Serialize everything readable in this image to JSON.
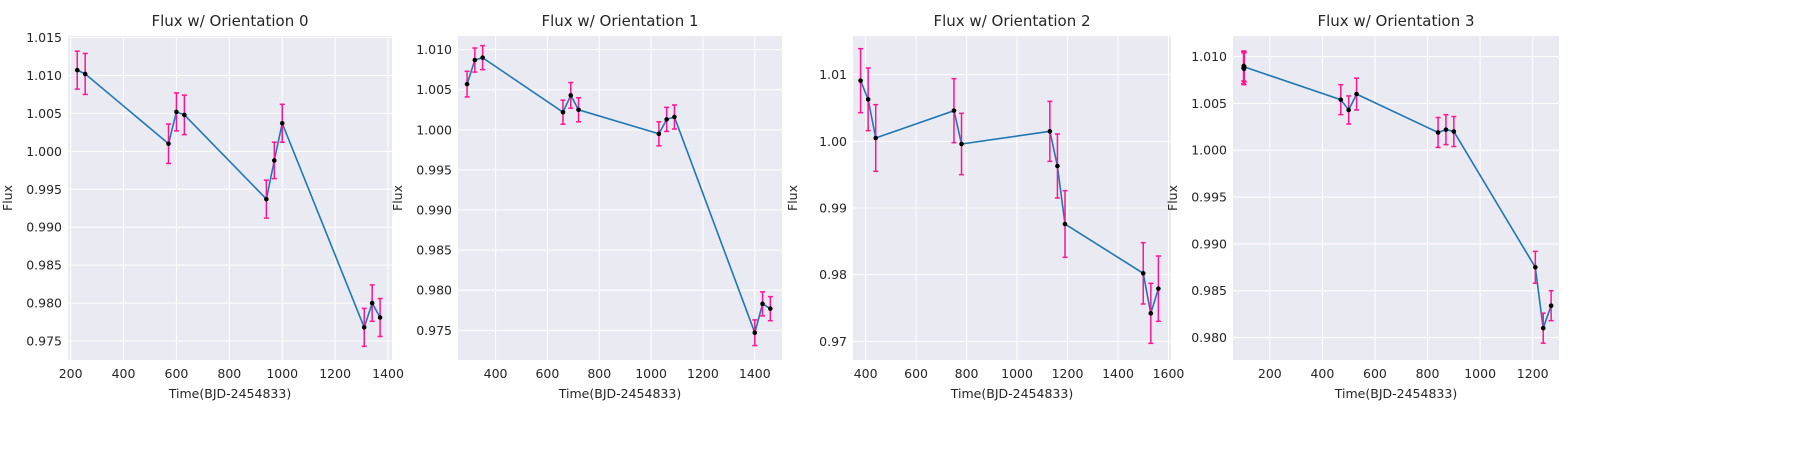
{
  "chart_data": [
    {
      "type": "line",
      "title": "Flux w/ Orientation 0",
      "xlabel": "Time(BJD-2454833)",
      "ylabel": "Flux",
      "xlim": [
        190,
        1415
      ],
      "ylim": [
        0.9725,
        1.0152
      ],
      "xticks": [
        200,
        400,
        600,
        800,
        1000,
        1200,
        1400
      ],
      "yticks": [
        0.975,
        0.98,
        0.985,
        0.99,
        0.995,
        1.0,
        1.005,
        1.01,
        1.015
      ],
      "ytick_labels": [
        "0.975",
        "0.980",
        "0.985",
        "0.990",
        "0.995",
        "1.000",
        "1.005",
        "1.010",
        "1.015"
      ],
      "grid": true,
      "x": [
        225,
        255,
        570,
        600,
        630,
        940,
        970,
        1000,
        1310,
        1340,
        1370
      ],
      "y": [
        1.0107,
        1.0102,
        1.001,
        1.0052,
        1.0048,
        0.9937,
        0.9988,
        1.0037,
        0.9768,
        0.98,
        0.9781
      ],
      "err": [
        0.0025,
        0.0027,
        0.0026,
        0.0025,
        0.0026,
        0.0025,
        0.0024,
        0.0025,
        0.0025,
        0.0024,
        0.0025
      ]
    },
    {
      "type": "line",
      "title": "Flux w/ Orientation 1",
      "xlabel": "Time(BJD-2454833)",
      "ylabel": "Flux",
      "xlim": [
        255,
        1505
      ],
      "ylim": [
        0.9713,
        1.0117
      ],
      "xticks": [
        400,
        600,
        800,
        1000,
        1200,
        1400
      ],
      "yticks": [
        0.975,
        0.98,
        0.985,
        0.99,
        0.995,
        1.0,
        1.005,
        1.01
      ],
      "ytick_labels": [
        "0.975",
        "0.980",
        "0.985",
        "0.990",
        "0.995",
        "1.000",
        "1.005",
        "1.010"
      ],
      "grid": true,
      "x": [
        290,
        320,
        350,
        660,
        690,
        720,
        1030,
        1060,
        1090,
        1400,
        1430,
        1460
      ],
      "y": [
        1.0057,
        1.0087,
        1.009,
        1.0022,
        1.0043,
        1.0025,
        0.9995,
        1.0013,
        1.0016,
        0.9747,
        0.9783,
        0.9777
      ],
      "err": [
        0.0016,
        0.0015,
        0.0015,
        0.0015,
        0.0016,
        0.0015,
        0.0015,
        0.0015,
        0.0015,
        0.0016,
        0.0015,
        0.0015
      ]
    },
    {
      "type": "line",
      "title": "Flux w/ Orientation 2",
      "xlabel": "Time(BJD-2454833)",
      "ylabel": "Flux",
      "xlim": [
        350,
        1610
      ],
      "ylim": [
        0.9672,
        1.0158
      ],
      "xticks": [
        400,
        600,
        800,
        1000,
        1200,
        1400,
        1600
      ],
      "yticks": [
        0.97,
        0.98,
        0.99,
        1.0,
        1.01
      ],
      "ytick_labels": [
        "0.97",
        "0.98",
        "0.99",
        "1.00",
        "1.01"
      ],
      "grid": true,
      "x": [
        380,
        410,
        440,
        750,
        780,
        1130,
        1160,
        1190,
        1500,
        1530,
        1560
      ],
      "y": [
        1.0091,
        1.0063,
        1.0005,
        1.0046,
        0.9996,
        1.0015,
        0.9963,
        0.9876,
        0.9802,
        0.9742,
        0.9779
      ],
      "err": [
        0.0048,
        0.0047,
        0.005,
        0.0048,
        0.0046,
        0.0045,
        0.0048,
        0.005,
        0.0046,
        0.0045,
        0.0049
      ]
    },
    {
      "type": "line",
      "title": "Flux w/ Orientation 3",
      "xlabel": "Time(BJD-2454833)",
      "ylabel": "Flux",
      "xlim": [
        60,
        1300
      ],
      "ylim": [
        0.9776,
        1.0122
      ],
      "xticks": [
        200,
        400,
        600,
        800,
        1000,
        1200
      ],
      "yticks": [
        0.98,
        0.985,
        0.99,
        0.995,
        1.0,
        1.005,
        1.01
      ],
      "ytick_labels": [
        "0.980",
        "0.985",
        "0.990",
        "0.995",
        "1.000",
        "1.005",
        "1.010"
      ],
      "grid": true,
      "x": [
        100,
        101,
        102,
        103,
        470,
        500,
        530,
        840,
        870,
        900,
        1210,
        1240,
        1270
      ],
      "y": [
        1.0088,
        1.009,
        1.0087,
        1.0089,
        1.0054,
        1.0043,
        1.006,
        1.0019,
        1.0022,
        1.002,
        0.9875,
        0.981,
        0.9834
      ],
      "err": [
        0.0017,
        0.0016,
        0.0017,
        0.0016,
        0.0016,
        0.0015,
        0.0017,
        0.0016,
        0.0016,
        0.0016,
        0.0017,
        0.0016,
        0.0016
      ]
    }
  ],
  "colors": {
    "line": "#1f77b4",
    "marker": "#000000",
    "errorbar": "#ff1493",
    "plot_background": "#eaeaf2",
    "grid": "#ffffff",
    "text": "#262626"
  }
}
